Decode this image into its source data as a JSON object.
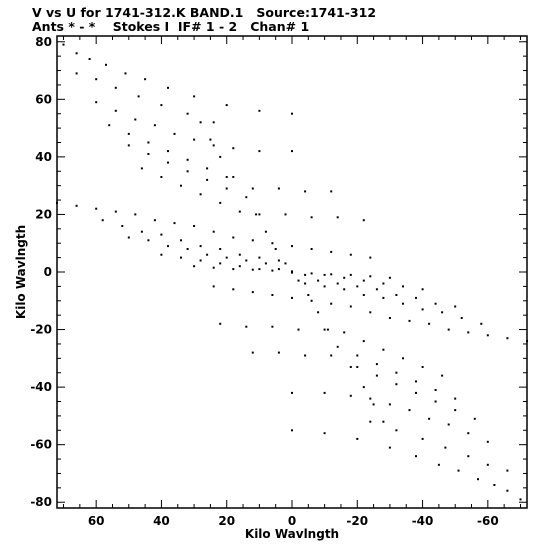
{
  "header": {
    "line1": "V vs U for 1741-312.K BAND.1   Source:1741-312",
    "line2": "Ants * - *    Stokes I  IF# 1 - 2   Chan# 1"
  },
  "chart_data": {
    "type": "scatter",
    "xlabel": "Kilo Wavlngth",
    "ylabel": "Kilo Wavlngth",
    "xlim": [
      72,
      -72
    ],
    "ylim": [
      -82,
      82
    ],
    "x_ticks": [
      60,
      40,
      20,
      0,
      -20,
      -40,
      -60
    ],
    "y_ticks": [
      80,
      60,
      40,
      20,
      0,
      -20,
      -40,
      -60,
      -80
    ],
    "x_axis_reversed": true,
    "grid": false,
    "marker_color": "#000000",
    "uv_tracks": {
      "description": "Points are listed as [u, v] pairs (kilo-wavelength); every point also has a conjugate at [-u, -v].",
      "points": [
        [
          70,
          79
        ],
        [
          66,
          76
        ],
        [
          62,
          74
        ],
        [
          57,
          72
        ],
        [
          51,
          69
        ],
        [
          45,
          67
        ],
        [
          38,
          64
        ],
        [
          30,
          61
        ],
        [
          20,
          58
        ],
        [
          10,
          56
        ],
        [
          0,
          55
        ],
        [
          66,
          69
        ],
        [
          60,
          67
        ],
        [
          54,
          64
        ],
        [
          47,
          61
        ],
        [
          40,
          58
        ],
        [
          32,
          55
        ],
        [
          24,
          52
        ],
        [
          60,
          59
        ],
        [
          54,
          56
        ],
        [
          48,
          53
        ],
        [
          42,
          51
        ],
        [
          36,
          48
        ],
        [
          30,
          46
        ],
        [
          24,
          44
        ],
        [
          18,
          43
        ],
        [
          10,
          42
        ],
        [
          0,
          42
        ],
        [
          56,
          51
        ],
        [
          50,
          48
        ],
        [
          44,
          45
        ],
        [
          38,
          42
        ],
        [
          32,
          39
        ],
        [
          26,
          36
        ],
        [
          20,
          33
        ],
        [
          50,
          44
        ],
        [
          44,
          41
        ],
        [
          38,
          38
        ],
        [
          32,
          35
        ],
        [
          26,
          32
        ],
        [
          20,
          29
        ],
        [
          12,
          29
        ],
        [
          4,
          29
        ],
        [
          -4,
          28
        ],
        [
          -12,
          28
        ],
        [
          46,
          36
        ],
        [
          40,
          33
        ],
        [
          34,
          30
        ],
        [
          28,
          27
        ],
        [
          22,
          24
        ],
        [
          16,
          21
        ],
        [
          10,
          20
        ],
        [
          2,
          20
        ],
        [
          -6,
          19
        ],
        [
          -14,
          19
        ],
        [
          -22,
          18
        ],
        [
          28,
          52
        ],
        [
          25,
          46
        ],
        [
          22,
          40
        ],
        [
          18,
          33
        ],
        [
          14,
          26
        ],
        [
          11,
          20
        ],
        [
          8,
          14
        ],
        [
          5,
          8
        ],
        [
          2,
          3
        ],
        [
          72,
          24
        ],
        [
          66,
          23
        ],
        [
          60,
          22
        ],
        [
          54,
          21
        ],
        [
          48,
          20
        ],
        [
          42,
          18
        ],
        [
          36,
          17
        ],
        [
          30,
          16
        ],
        [
          24,
          14
        ],
        [
          18,
          12
        ],
        [
          12,
          11
        ],
        [
          6,
          10
        ],
        [
          0,
          9
        ],
        [
          -6,
          8
        ],
        [
          -12,
          7
        ],
        [
          -18,
          6
        ],
        [
          -24,
          5
        ],
        [
          58,
          18
        ],
        [
          52,
          16
        ],
        [
          46,
          14
        ],
        [
          40,
          13
        ],
        [
          34,
          11
        ],
        [
          28,
          9
        ],
        [
          22,
          8
        ],
        [
          16,
          6
        ],
        [
          10,
          5
        ],
        [
          4,
          4
        ],
        [
          50,
          12
        ],
        [
          44,
          11
        ],
        [
          38,
          9
        ],
        [
          32,
          8
        ],
        [
          26,
          6
        ],
        [
          20,
          5
        ],
        [
          14,
          4
        ],
        [
          8,
          3
        ],
        [
          40,
          6
        ],
        [
          34,
          5
        ],
        [
          28,
          4
        ],
        [
          22,
          3
        ],
        [
          16,
          2
        ],
        [
          10,
          1
        ],
        [
          4,
          1
        ],
        [
          30,
          2
        ],
        [
          24,
          1.5
        ],
        [
          18,
          1
        ],
        [
          12,
          0.8
        ],
        [
          6,
          0.5
        ],
        [
          0,
          0.2
        ]
      ]
    }
  }
}
